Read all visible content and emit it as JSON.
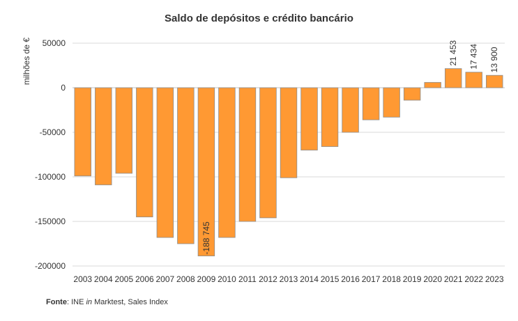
{
  "chart_data": {
    "type": "bar",
    "title": "Saldo de depósitos e crédito bancário",
    "ylabel": "milhões de €",
    "xlabel": "",
    "ylim": [
      -200000,
      50000
    ],
    "yticks": [
      50000,
      0,
      -50000,
      -100000,
      -150000,
      -200000
    ],
    "grid": true,
    "categories": [
      "2003",
      "2004",
      "2005",
      "2006",
      "2007",
      "2008",
      "2009",
      "2010",
      "2011",
      "2012",
      "2013",
      "2014",
      "2015",
      "2016",
      "2017",
      "2018",
      "2019",
      "2020",
      "2021",
      "2022",
      "2023"
    ],
    "values": [
      -99000,
      -109000,
      -96000,
      -145000,
      -168000,
      -175000,
      -188745,
      -168000,
      -150000,
      -146000,
      -101000,
      -70000,
      -66000,
      -50000,
      -36000,
      -33000,
      -14000,
      6000,
      21453,
      17434,
      13900
    ],
    "data_labels": [
      {
        "index": 6,
        "text": "-188 745"
      },
      {
        "index": 18,
        "text": "21 453"
      },
      {
        "index": 19,
        "text": "17 434"
      },
      {
        "index": 20,
        "text": "13 900"
      }
    ],
    "bar_color": "#FF9933",
    "bar_stroke": "#8C8C8C"
  },
  "source": {
    "label": "Fonte",
    "text_before": ": INE ",
    "italic": "in",
    "text_after": " Marktest, Sales Index"
  }
}
